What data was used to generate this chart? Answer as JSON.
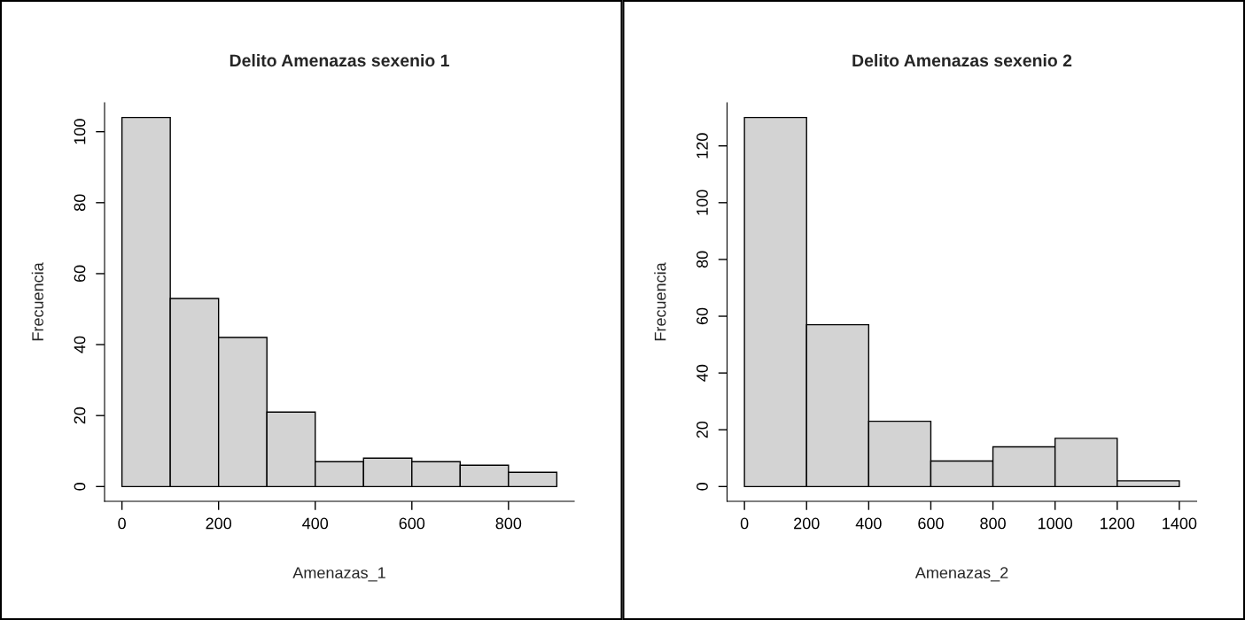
{
  "chart_data": [
    {
      "type": "histogram",
      "title": "Delito Amenazas sexenio 1",
      "xlabel": "Amenazas_1",
      "ylabel": "Frecuencia",
      "color": "#d3d3d3",
      "bins": [
        0,
        100,
        200,
        300,
        400,
        500,
        600,
        700,
        800,
        900
      ],
      "values": [
        104,
        53,
        42,
        21,
        7,
        8,
        7,
        6,
        4
      ],
      "xlim": [
        -36,
        936
      ],
      "ylim": [
        -4.16,
        108.16
      ],
      "xticks": [
        0,
        200,
        400,
        600,
        800
      ],
      "yticks": [
        0,
        20,
        40,
        60,
        80,
        100
      ]
    },
    {
      "type": "histogram",
      "title": "Delito Amenazas sexenio 2",
      "xlabel": "Amenazas_2",
      "ylabel": "Frecuencia",
      "color": "#d3d3d3",
      "bins": [
        0,
        200,
        400,
        600,
        800,
        1000,
        1200,
        1400
      ],
      "values": [
        130,
        57,
        23,
        9,
        14,
        17,
        2
      ],
      "xlim": [
        -56,
        1456
      ],
      "ylim": [
        -5.2,
        135.2
      ],
      "xticks": [
        0,
        200,
        400,
        600,
        800,
        1000,
        1200,
        1400
      ],
      "yticks": [
        0,
        20,
        40,
        60,
        80,
        100,
        120
      ]
    }
  ]
}
